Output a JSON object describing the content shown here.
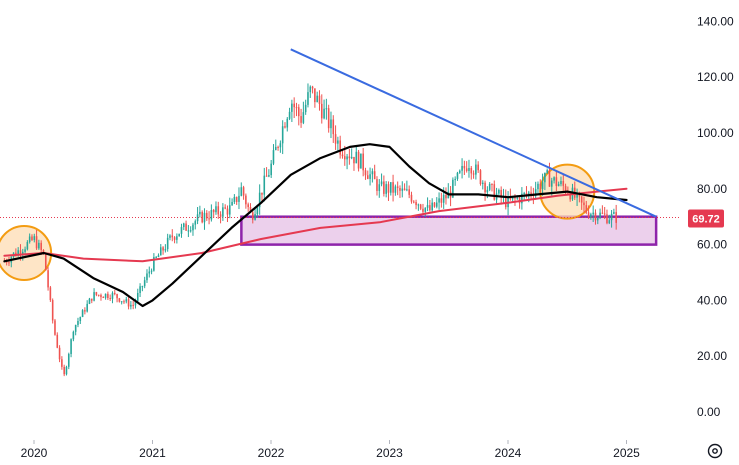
{
  "chart_data": {
    "type": "candlestick",
    "x_ticks": [
      "2020",
      "2021",
      "2022",
      "2023",
      "2024",
      "2025"
    ],
    "y_ticks": [
      "0.00",
      "20.00",
      "40.00",
      "60.00",
      "80.00",
      "100.00",
      "120.00",
      "140.00"
    ],
    "ylim": [
      -4,
      146
    ],
    "last_price": "69.72",
    "colors": {
      "up": "#26a69a",
      "down": "#ef5350",
      "ma_short": "#000000",
      "ma_long": "#e53950",
      "trendline": "#3a6be0",
      "zone_fill": "#ecd0ec",
      "zone_border": "#8e24aa",
      "circle_fill": "#fddcb3",
      "circle_border": "#f39c12",
      "price_badge": "#e53950"
    },
    "price_path": [
      [
        "2019-10",
        54
      ],
      [
        "2020-01",
        62
      ],
      [
        "2020-02",
        56
      ],
      [
        "2020-03",
        30
      ],
      [
        "2020-04",
        12
      ],
      [
        "2020-05",
        30
      ],
      [
        "2020-07",
        42
      ],
      [
        "2020-09",
        42
      ],
      [
        "2020-11",
        38
      ],
      [
        "2021-01",
        53
      ],
      [
        "2021-03",
        63
      ],
      [
        "2021-06",
        70
      ],
      [
        "2021-09",
        73
      ],
      [
        "2021-10",
        80
      ],
      [
        "2021-11",
        70
      ],
      [
        "2022-01",
        88
      ],
      [
        "2022-02",
        100
      ],
      [
        "2022-03",
        112
      ],
      [
        "2022-04",
        105
      ],
      [
        "2022-05",
        115
      ],
      [
        "2022-06",
        110
      ],
      [
        "2022-08",
        95
      ],
      [
        "2022-10",
        90
      ],
      [
        "2022-12",
        80
      ],
      [
        "2023-01",
        80
      ],
      [
        "2023-03",
        78
      ],
      [
        "2023-05",
        72
      ],
      [
        "2023-07",
        78
      ],
      [
        "2023-09",
        90
      ],
      [
        "2023-11",
        80
      ],
      [
        "2024-01",
        75
      ],
      [
        "2024-03",
        78
      ],
      [
        "2024-05",
        84
      ],
      [
        "2024-07",
        80
      ],
      [
        "2024-09",
        72
      ],
      [
        "2024-11",
        70
      ],
      [
        "2024-12",
        69.72
      ]
    ],
    "ma_short": [
      [
        "2019-10",
        54
      ],
      [
        "2020-02",
        57
      ],
      [
        "2020-04",
        55
      ],
      [
        "2020-07",
        48
      ],
      [
        "2020-10",
        43
      ],
      [
        "2020-12",
        38
      ],
      [
        "2021-01",
        40
      ],
      [
        "2021-03",
        46
      ],
      [
        "2021-06",
        56
      ],
      [
        "2021-09",
        66
      ],
      [
        "2021-12",
        75
      ],
      [
        "2022-03",
        85
      ],
      [
        "2022-06",
        91
      ],
      [
        "2022-09",
        95
      ],
      [
        "2022-11",
        96
      ],
      [
        "2023-01",
        95
      ],
      [
        "2023-03",
        88
      ],
      [
        "2023-05",
        82
      ],
      [
        "2023-07",
        78
      ],
      [
        "2023-10",
        78
      ],
      [
        "2024-01",
        77
      ],
      [
        "2024-04",
        78
      ],
      [
        "2024-07",
        79
      ],
      [
        "2024-10",
        77
      ],
      [
        "2025-01",
        76
      ]
    ],
    "ma_long": [
      [
        "2019-10",
        56
      ],
      [
        "2020-02",
        57
      ],
      [
        "2020-06",
        55
      ],
      [
        "2020-12",
        54
      ],
      [
        "2021-06",
        57
      ],
      [
        "2021-12",
        62
      ],
      [
        "2022-06",
        66
      ],
      [
        "2022-12",
        68
      ],
      [
        "2023-06",
        72
      ],
      [
        "2024-01",
        75
      ],
      [
        "2024-06",
        77.5
      ],
      [
        "2024-10",
        79
      ],
      [
        "2025-01",
        80
      ]
    ],
    "annotations": {
      "trendline": [
        [
          "2022-03",
          130
        ],
        [
          "2025-04",
          70
        ]
      ],
      "support_zone": {
        "from": "2021-10",
        "to": "2025-04",
        "low": 60,
        "high": 70
      },
      "circles": [
        {
          "x": "2019-12",
          "y": 57
        },
        {
          "x": "2024-07",
          "y": 79
        }
      ]
    }
  },
  "icons": {
    "settings": "gear-icon"
  }
}
